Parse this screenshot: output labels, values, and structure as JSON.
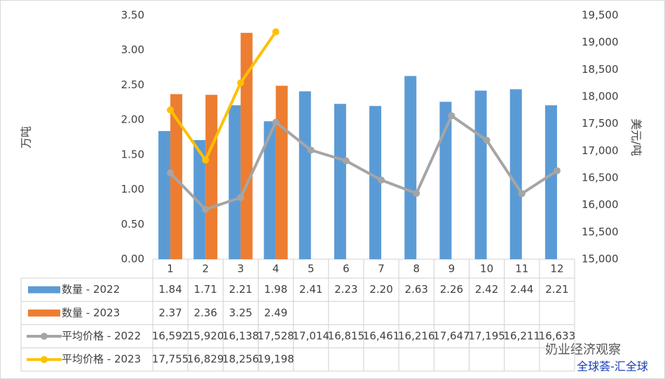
{
  "chart_data": {
    "type": "bar-line",
    "categories": [
      "1",
      "2",
      "3",
      "4",
      "5",
      "6",
      "7",
      "8",
      "9",
      "10",
      "11",
      "12"
    ],
    "ylabel": "万吨",
    "y2label": "美元/吨",
    "ylim": [
      0,
      3.5
    ],
    "yticks": [
      {
        "value": 0,
        "label": "0.00"
      },
      {
        "value": 0.5,
        "label": "0.50"
      },
      {
        "value": 1,
        "label": "1.00"
      },
      {
        "value": 1.5,
        "label": "1.50"
      },
      {
        "value": 2,
        "label": "2.00"
      },
      {
        "value": 2.5,
        "label": "2.50"
      },
      {
        "value": 3,
        "label": "3.00"
      },
      {
        "value": 3.5,
        "label": "3.50"
      }
    ],
    "y2lim": [
      15000,
      19500
    ],
    "y2ticks": [
      {
        "value": 15000,
        "label": "15,000"
      },
      {
        "value": 15500,
        "label": "15,500"
      },
      {
        "value": 16000,
        "label": "16,000"
      },
      {
        "value": 16500,
        "label": "16,500"
      },
      {
        "value": 17000,
        "label": "17,000"
      },
      {
        "value": 17500,
        "label": "17,500"
      },
      {
        "value": 18000,
        "label": "18,000"
      },
      {
        "value": 18500,
        "label": "18,500"
      },
      {
        "value": 19000,
        "label": "19,000"
      },
      {
        "value": 19500,
        "label": "19,500"
      }
    ],
    "series": [
      {
        "name": "数量 - 2022",
        "kind": "bar",
        "color": "#5b9bd5",
        "values": [
          1.84,
          1.71,
          2.21,
          1.98,
          2.41,
          2.23,
          2.2,
          2.63,
          2.26,
          2.42,
          2.44,
          2.21
        ],
        "value_labels": [
          "1.84",
          "1.71",
          "2.21",
          "1.98",
          "2.41",
          "2.23",
          "2.20",
          "2.63",
          "2.26",
          "2.42",
          "2.44",
          "2.21"
        ]
      },
      {
        "name": "数量 - 2023",
        "kind": "bar",
        "color": "#ed7d31",
        "values": [
          2.37,
          2.36,
          3.25,
          2.49,
          null,
          null,
          null,
          null,
          null,
          null,
          null,
          null
        ],
        "value_labels": [
          "2.37",
          "2.36",
          "3.25",
          "2.49",
          null,
          null,
          null,
          null,
          null,
          null,
          null,
          null
        ]
      },
      {
        "name": "平均价格 - 2022",
        "kind": "line",
        "axis": "y2",
        "color": "#a5a5a5",
        "values": [
          16592,
          15920,
          16138,
          17528,
          17014,
          16815,
          16461,
          16216,
          17647,
          17195,
          16211,
          16633
        ],
        "value_labels": [
          "16,592",
          "15,920",
          "16,138",
          "17,528",
          "17,014",
          "16,815",
          "16,461",
          "16,216",
          "17,647",
          "17,195",
          "16,211",
          "16,633"
        ]
      },
      {
        "name": "平均价格 - 2023",
        "kind": "line",
        "axis": "y2",
        "color": "#ffc000",
        "values": [
          17755,
          16829,
          18256,
          19198,
          null,
          null,
          null,
          null,
          null,
          null,
          null,
          null
        ],
        "value_labels": [
          "17,755",
          "16,829",
          "18,256",
          "19,198",
          null,
          null,
          null,
          null,
          null,
          null,
          null,
          null
        ]
      }
    ],
    "grid": false,
    "watermark": "奶业经济观察",
    "source": "全球荟-汇全球"
  }
}
